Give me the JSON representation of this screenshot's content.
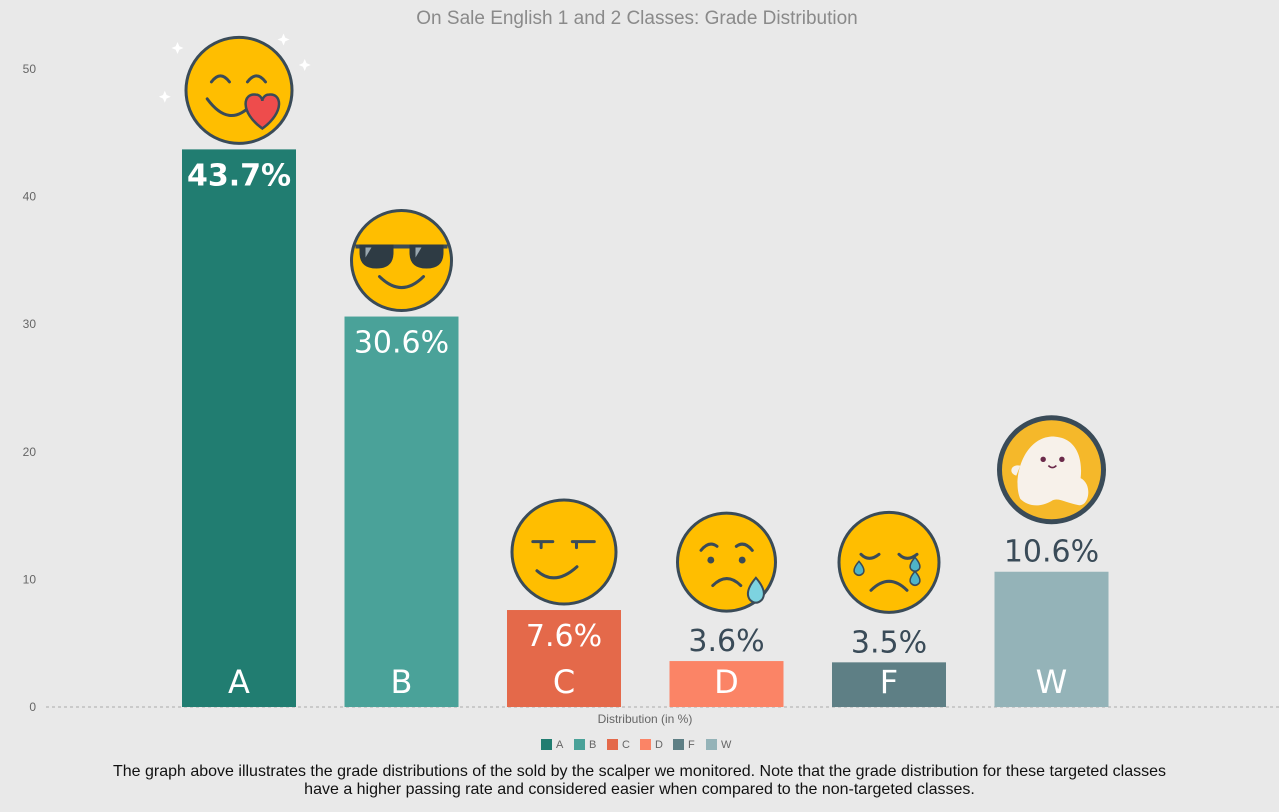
{
  "chart_data": {
    "type": "bar",
    "title": "On Sale English 1 and 2 Classes: Grade Distribution",
    "xlabel": "Distribution (in %)",
    "ylabel": "",
    "ylim": [
      0,
      50
    ],
    "yticks": [
      0,
      10,
      20,
      30,
      40,
      50
    ],
    "grid": false,
    "legend_position": "bottom",
    "categories": [
      "A",
      "B",
      "C",
      "D",
      "F",
      "W"
    ],
    "values": [
      43.7,
      30.6,
      7.6,
      3.6,
      3.5,
      10.6
    ],
    "value_labels": [
      "43.7%",
      "30.6%",
      "7.6%",
      "3.6%",
      "3.5%",
      "10.6%"
    ],
    "colors": [
      "#217d71",
      "#4aa299",
      "#e4694a",
      "#fb8466",
      "#5e7f85",
      "#94b3b8"
    ],
    "emojis": [
      "kiss-heart-emoji-icon",
      "sunglasses-emoji-icon",
      "smirk-emoji-icon",
      "worried-emoji-icon",
      "crying-emoji-icon",
      "ghost-emoji-icon"
    ]
  },
  "caption": "The graph above illustrates the grade distributions of the sold by the scalper we monitored. Note that the grade distribution for these targeted classes have a higher passing rate and considered easier when compared to the non-targeted classes."
}
